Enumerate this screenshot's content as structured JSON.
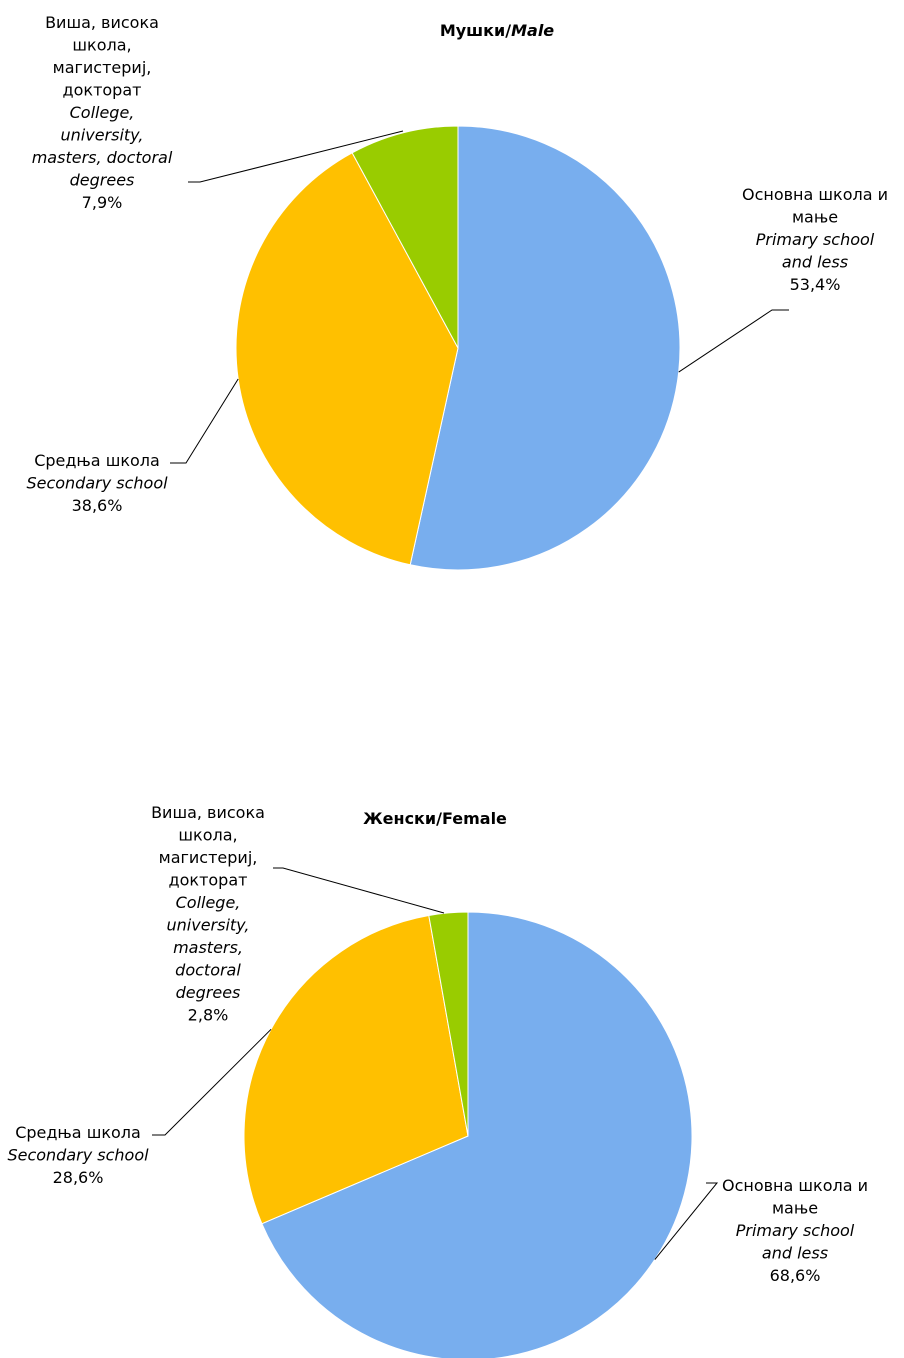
{
  "chart_data": [
    {
      "type": "pie",
      "title": "Мушки/Male",
      "title_parts": {
        "local": "Мушки",
        "separator": "/",
        "en": "Male",
        "en_italic": true
      },
      "start_angle_deg": 0,
      "direction": "clockwise",
      "slices": [
        {
          "key": "primary",
          "label_lines_local": [
            "Основна школа и",
            "мање"
          ],
          "label_lines_en": [
            "Primary school",
            "and less"
          ],
          "value_label": "53,4%",
          "value": 53.4,
          "color": "#78aeee"
        },
        {
          "key": "secondary",
          "label_lines_local": [
            "Средња школа"
          ],
          "label_lines_en": [
            "Secondary school"
          ],
          "value_label": "38,6%",
          "value": 38.6,
          "color": "#ffc000"
        },
        {
          "key": "higher",
          "label_lines_local": [
            "Виша, висока",
            "школа,",
            "магистериј,",
            "докторат"
          ],
          "label_lines_en": [
            "College,",
            "university,",
            "masters, doctoral",
            "degrees"
          ],
          "value_label": "7,9%",
          "value": 7.9,
          "color": "#99cc00"
        }
      ]
    },
    {
      "type": "pie",
      "title": "Женски/Female",
      "title_parts": {
        "local": "Женски",
        "separator": "/",
        "en": "Female",
        "en_italic": false
      },
      "start_angle_deg": 0,
      "direction": "clockwise",
      "slices": [
        {
          "key": "primary",
          "label_lines_local": [
            "Основна школа и",
            "мање"
          ],
          "label_lines_en": [
            "Primary school",
            "and less"
          ],
          "value_label": "68,6%",
          "value": 68.6,
          "color": "#78aeee"
        },
        {
          "key": "secondary",
          "label_lines_local": [
            "Средња школа"
          ],
          "label_lines_en": [
            "Secondary school"
          ],
          "value_label": "28,6%",
          "value": 28.6,
          "color": "#ffc000"
        },
        {
          "key": "higher",
          "label_lines_local": [
            "Виша, висока",
            "школа,",
            "магистериј,",
            "докторат"
          ],
          "label_lines_en": [
            "College,",
            "university,",
            "masters,",
            "doctoral",
            "degrees"
          ],
          "value_label": "2,8%",
          "value": 2.8,
          "color": "#99cc00"
        }
      ]
    }
  ]
}
